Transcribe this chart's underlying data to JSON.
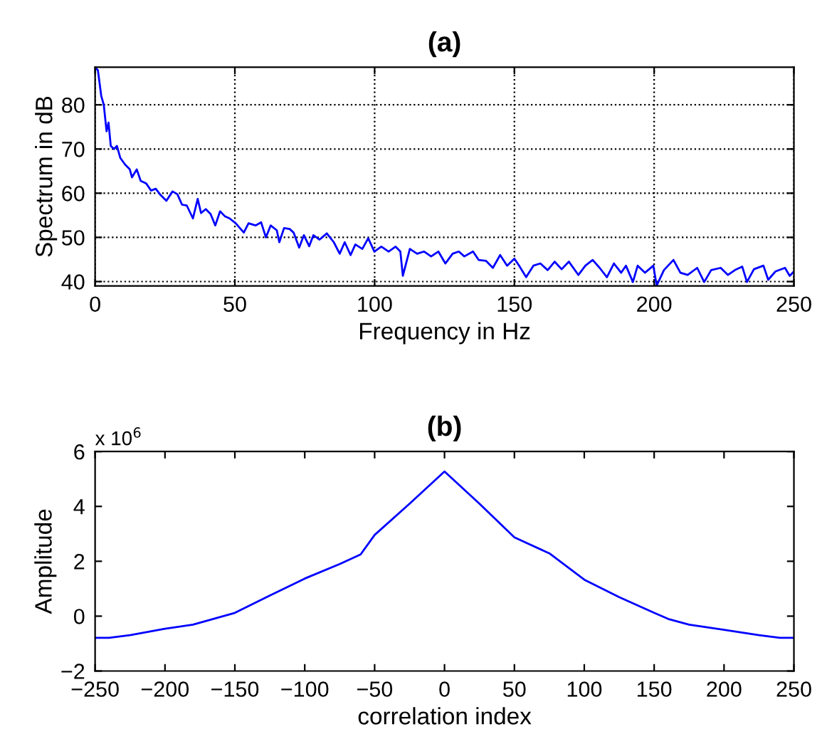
{
  "chart_data": [
    {
      "type": "line",
      "title": "(a)",
      "xlabel": "Frequency in Hz",
      "ylabel": "Spectrum in dB",
      "x": [
        0,
        1.0,
        2.2,
        3.1,
        4.1,
        4.8,
        5.6,
        6.8,
        7.8,
        9.0,
        10.7,
        12.4,
        13.2,
        14.9,
        16.3,
        18.3,
        20.0,
        21.7,
        23.4,
        25.5,
        27.7,
        29.4,
        31.1,
        32.8,
        35.0,
        36.7,
        37.9,
        39.6,
        41.3,
        43.0,
        44.7,
        46.4,
        48.1,
        50.3,
        53.2,
        54.9,
        57.4,
        59.4,
        61.1,
        62.8,
        65.0,
        65.9,
        67.6,
        69.6,
        71.0,
        73.0,
        74.7,
        76.6,
        78.1,
        80.3,
        82.9,
        85.4,
        87.5,
        89.3,
        91.4,
        93.1,
        95.6,
        97.7,
        99.9,
        102.4,
        105.0,
        107.5,
        109.2,
        110.1,
        112.6,
        115.2,
        117.7,
        120.2,
        122.8,
        125.3,
        127.9,
        130.1,
        132.1,
        135.2,
        137.2,
        139.8,
        142.3,
        144.9,
        147.4,
        150.0,
        151.7,
        154.2,
        156.8,
        159.3,
        161.9,
        164.4,
        166.9,
        169.5,
        172.9,
        175.4,
        178.0,
        180.5,
        183.1,
        185.6,
        188.2,
        189.9,
        192.4,
        194.1,
        196.7,
        199.7,
        200.9,
        203.5,
        206.9,
        209.4,
        212.0,
        215.4,
        217.9,
        220.4,
        223.8,
        226.4,
        228.9,
        231.5,
        233.2,
        235.7,
        239.1,
        240.8,
        243.4,
        246.8,
        248.5,
        250
      ],
      "series": [
        {
          "color": "#0000ff",
          "values": [
            88.5,
            87.8,
            82,
            80,
            74,
            76,
            70.7,
            70,
            70.7,
            68,
            66.5,
            65.4,
            63.6,
            65.4,
            62.8,
            62.2,
            60.6,
            61,
            59.6,
            58.3,
            60.4,
            59.8,
            57.4,
            57.2,
            54.3,
            58.7,
            55.5,
            56.4,
            55.3,
            52.7,
            55.9,
            54.8,
            54.3,
            53.2,
            51.1,
            53.2,
            52.7,
            53.4,
            50,
            52.7,
            51.6,
            48.9,
            52.1,
            51.9,
            51.1,
            47.7,
            50.5,
            48,
            50.5,
            49.5,
            50.9,
            48.9,
            46.3,
            48.9,
            46,
            48.4,
            47.4,
            49.8,
            46.8,
            47.9,
            46.8,
            47.9,
            46.8,
            41.3,
            47.4,
            46.3,
            46.8,
            45.7,
            46.8,
            44.1,
            46.3,
            46.8,
            45.7,
            46.8,
            44.9,
            44.7,
            43.1,
            46,
            43.6,
            45.2,
            43.6,
            41,
            43.6,
            44.1,
            42.6,
            44.5,
            42.8,
            44.5,
            41.5,
            43.6,
            44.9,
            43.1,
            41,
            44.1,
            42,
            43.6,
            39.9,
            43.6,
            42,
            43.6,
            39.1,
            42.6,
            44.9,
            42,
            41.5,
            43.1,
            39.9,
            42.6,
            43.1,
            41.5,
            42.6,
            43.4,
            39.9,
            42.8,
            43.6,
            40.4,
            42.3,
            43.1,
            41.3,
            42.3
          ]
        }
      ],
      "xlim": [
        0,
        250
      ],
      "xticks": [
        0,
        50,
        100,
        150,
        200,
        250
      ],
      "ylim": [
        39,
        88.5
      ],
      "yticks": [
        40,
        50,
        60,
        70,
        80
      ],
      "grid": true
    },
    {
      "type": "line",
      "title": "(b)",
      "xlabel": "correlation index",
      "ylabel": "Amplitude",
      "annotations": [
        "x 10$^{6}$"
      ],
      "x": [
        -250,
        -240,
        -225,
        -200,
        -180,
        -150,
        -125,
        -100,
        -75,
        -60,
        -50,
        -25,
        0,
        25,
        50,
        75,
        100,
        125,
        150,
        160,
        175,
        200,
        225,
        240,
        250
      ],
      "series": [
        {
          "color": "#0000ff",
          "values": [
            -0.79,
            -0.79,
            -0.69,
            -0.46,
            -0.31,
            0.12,
            0.75,
            1.37,
            1.9,
            2.25,
            2.96,
            4.1,
            5.27,
            4.1,
            2.87,
            2.29,
            1.33,
            0.69,
            0.12,
            -0.1,
            -0.31,
            -0.5,
            -0.69,
            -0.79,
            -0.79
          ]
        }
      ],
      "xlim": [
        -250,
        250
      ],
      "xticks": [
        {
          "value": -250,
          "label": "−250"
        },
        {
          "value": -200,
          "label": "−200"
        },
        {
          "value": -150,
          "label": "−150"
        },
        {
          "value": -100,
          "label": "−100"
        },
        {
          "value": -50,
          "label": "−50"
        },
        0,
        50,
        100,
        150,
        200,
        250
      ],
      "ylim": [
        -2,
        6
      ],
      "yticks": [
        {
          "value": -2,
          "label": "−2"
        },
        0,
        2,
        4,
        6
      ],
      "grid": false
    }
  ]
}
